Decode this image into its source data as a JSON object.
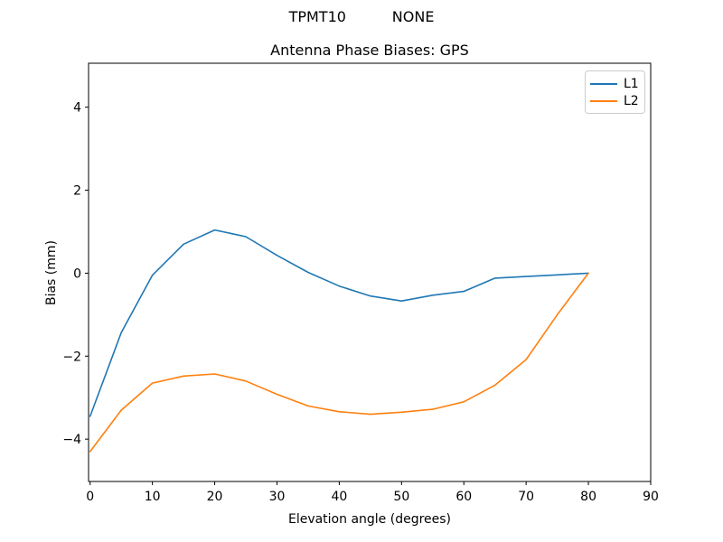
{
  "figure": {
    "suptitle": "TPMT10          NONE"
  },
  "chart_data": {
    "type": "line",
    "title": "Antenna Phase Biases: GPS",
    "xlabel": "Elevation angle (degrees)",
    "ylabel": "Bias (mm)",
    "xlim": [
      -0.25,
      90
    ],
    "ylim": [
      -5.02,
      5.06
    ],
    "xticks": [
      0,
      10,
      20,
      30,
      40,
      50,
      60,
      70,
      80,
      90
    ],
    "yticks": [
      -4,
      -2,
      0,
      2,
      4
    ],
    "grid": false,
    "legend_position": "upper-right",
    "x": [
      0,
      5,
      10,
      15,
      20,
      25,
      30,
      35,
      40,
      45,
      50,
      55,
      60,
      65,
      70,
      75,
      80
    ],
    "series": [
      {
        "name": "L1",
        "color": "#1f77b4",
        "values": [
          -3.45,
          -1.43,
          -0.05,
          0.7,
          1.04,
          0.88,
          0.43,
          0.02,
          -0.31,
          -0.55,
          -0.67,
          -0.53,
          -0.44,
          -0.12,
          -0.08,
          -0.04,
          0.0
        ]
      },
      {
        "name": "L2",
        "color": "#ff7f0e",
        "values": [
          -4.3,
          -3.3,
          -2.65,
          -2.48,
          -2.43,
          -2.6,
          -2.92,
          -3.2,
          -3.34,
          -3.4,
          -3.35,
          -3.28,
          -3.1,
          -2.7,
          -2.08,
          -1.0,
          0.0
        ]
      }
    ]
  }
}
